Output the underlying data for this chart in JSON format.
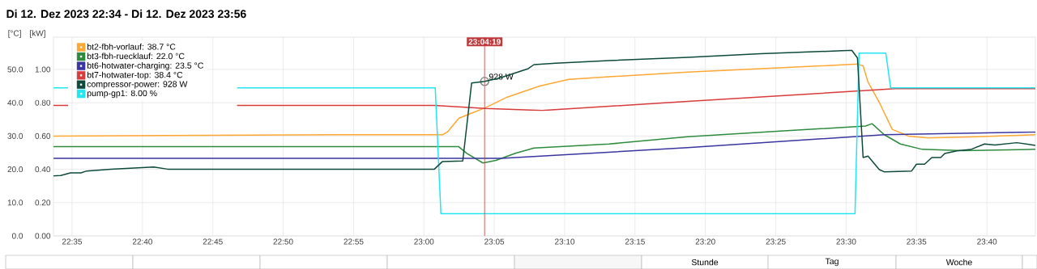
{
  "chart_data": {
    "type": "line",
    "title": "Di 12. Dez 2023 22:34 - Di 12. Dez 2023 23:56",
    "ylabel": "[°C]",
    "y2label": "[kW]",
    "xlim": [
      22.5613,
      23.7241
    ],
    "xticks": [
      {
        "value": 22.5833,
        "label": "22:35"
      },
      {
        "value": 22.6667,
        "label": "22:40"
      },
      {
        "value": 22.75,
        "label": "22:45"
      },
      {
        "value": 22.8333,
        "label": "22:50"
      },
      {
        "value": 22.9167,
        "label": "22:55"
      },
      {
        "value": 23.0,
        "label": "23:00"
      },
      {
        "value": 23.0833,
        "label": "23:05"
      },
      {
        "value": 23.1667,
        "label": "23:10"
      },
      {
        "value": 23.25,
        "label": "23:15"
      },
      {
        "value": 23.3333,
        "label": "23:20"
      },
      {
        "value": 23.4167,
        "label": "23:25"
      },
      {
        "value": 23.5,
        "label": "23:30"
      },
      {
        "value": 23.5833,
        "label": "23:35"
      },
      {
        "value": 23.6667,
        "label": "23:40"
      }
    ],
    "ylim": [
      0,
      59.7
    ],
    "yticks": [
      {
        "value": 0,
        "label": "0.0"
      },
      {
        "value": 10,
        "label": "10.0"
      },
      {
        "value": 20,
        "label": "20.0"
      },
      {
        "value": 30,
        "label": "30.0"
      },
      {
        "value": 40,
        "label": "40.0"
      },
      {
        "value": 50,
        "label": "50.0"
      }
    ],
    "y2lim": [
      0,
      1.194
    ],
    "y2ticks": [
      {
        "value": 0,
        "label": "0.00"
      },
      {
        "value": 0.2,
        "label": "0.20"
      },
      {
        "value": 0.4,
        "label": "0.40"
      },
      {
        "value": 0.6,
        "label": "0.60"
      },
      {
        "value": 0.8,
        "label": "0.80"
      },
      {
        "value": 1.0,
        "label": "1.00"
      }
    ],
    "grid": true,
    "legend": "top left",
    "series": [
      {
        "name": "bt2-fbh-vorlauf: 38.7 °C",
        "color": "#ffa733",
        "x": [
          22.5613,
          22.9004,
          23.022,
          23.0278,
          23.0412,
          23.0565,
          23.0728,
          23.0987,
          23.137,
          23.1715,
          23.2192,
          23.3123,
          23.4301,
          23.5134,
          23.5201,
          23.5259,
          23.5393,
          23.5546,
          23.5737,
          23.5968,
          23.6542,
          23.7241
        ],
        "values": [
          30.0,
          30.4,
          30.4,
          31.2,
          35.3,
          36.9,
          38.5,
          41.7,
          45.0,
          47.0,
          47.8,
          49.2,
          50.6,
          51.6,
          51.1,
          46.2,
          40.1,
          32.0,
          30.0,
          29.4,
          29.8,
          30.4
        ]
      },
      {
        "name": "bt3-fbh-ruecklauf: 22.0 °C",
        "color": "#2e8b3e",
        "x": [
          22.5613,
          23.0412,
          23.0508,
          23.0699,
          23.0853,
          23.1083,
          23.1303,
          23.2192,
          23.3123,
          23.4301,
          23.523,
          23.5307,
          23.5451,
          23.5642,
          23.59,
          23.6379,
          23.7241
        ],
        "values": [
          26.8,
          26.8,
          24.8,
          21.9,
          22.7,
          24.8,
          26.4,
          27.6,
          29.8,
          31.6,
          33.0,
          33.7,
          30.4,
          27.6,
          26.0,
          25.6,
          26.0
        ]
      },
      {
        "name": "bt6-hotwater-charging: 23.5 °C",
        "color": "#3a35a0",
        "x": [
          22.5613,
          23.092,
          23.3123,
          23.5451,
          23.7241
        ],
        "values": [
          23.3,
          23.3,
          26.5,
          30.4,
          31.2
        ]
      },
      {
        "name": "bt7-hotwater-top: 38.4 °C",
        "color": "#d93b3b",
        "x": [
          22.5613,
          22.5786,
          22.5814,
          22.7787,
          23.0124,
          23.0728,
          23.1399,
          23.3123,
          23.5584,
          23.7241
        ],
        "values": [
          39.2,
          39.2,
          null,
          39.2,
          39.2,
          38.3,
          37.7,
          40.4,
          44.2,
          44.2
        ]
      },
      {
        "name": "compressor-power: 928 W",
        "color": "#0d4a3a",
        "axis": "y2",
        "x": [
          22.5613,
          22.5699,
          22.5814,
          22.5939,
          22.6006,
          22.6293,
          22.6801,
          22.6964,
          23.0124,
          23.022,
          23.046,
          23.0565,
          23.0719,
          23.0891,
          23.1236,
          23.1303,
          23.1561,
          23.2192,
          23.3123,
          23.3985,
          23.5067,
          23.5134,
          23.5201,
          23.5259,
          23.5393,
          23.5451,
          23.5776,
          23.5833,
          23.5929,
          23.6015,
          23.612,
          23.6168,
          23.6312,
          23.6475,
          23.6638,
          23.6762,
          23.7021,
          23.7241
        ],
        "values": [
          0.36,
          0.363,
          0.379,
          0.379,
          0.39,
          0.401,
          0.414,
          0.401,
          0.401,
          0.447,
          0.45,
          0.919,
          0.928,
          0.948,
          1.005,
          1.029,
          1.037,
          1.053,
          1.073,
          1.094,
          1.115,
          1.069,
          0.471,
          0.479,
          0.398,
          0.385,
          0.39,
          0.431,
          0.431,
          0.471,
          0.471,
          0.495,
          0.511,
          0.519,
          0.552,
          0.546,
          0.56,
          0.544
        ]
      },
      {
        "name": "pump-gp1: 8.00 %",
        "color": "#22e6f0",
        "x": [
          22.5613,
          22.5786,
          22.5814,
          22.7787,
          23.0134,
          23.0201,
          23.5105,
          23.5153,
          23.547,
          23.5527,
          23.7241
        ],
        "values": [
          44.5,
          44.5,
          null,
          44.5,
          44.5,
          6.7,
          6.7,
          54.9,
          54.9,
          44.5,
          44.5
        ]
      }
    ],
    "ref_lines": [
      {
        "axis": "x",
        "value": 23.0719,
        "label": "23:04:19",
        "color": "#c0393b"
      }
    ],
    "annotations": [
      {
        "text": "928 W",
        "x": 23.0719,
        "y": 46.4
      },
      "Stunde",
      "Tag",
      "Woche"
    ]
  }
}
